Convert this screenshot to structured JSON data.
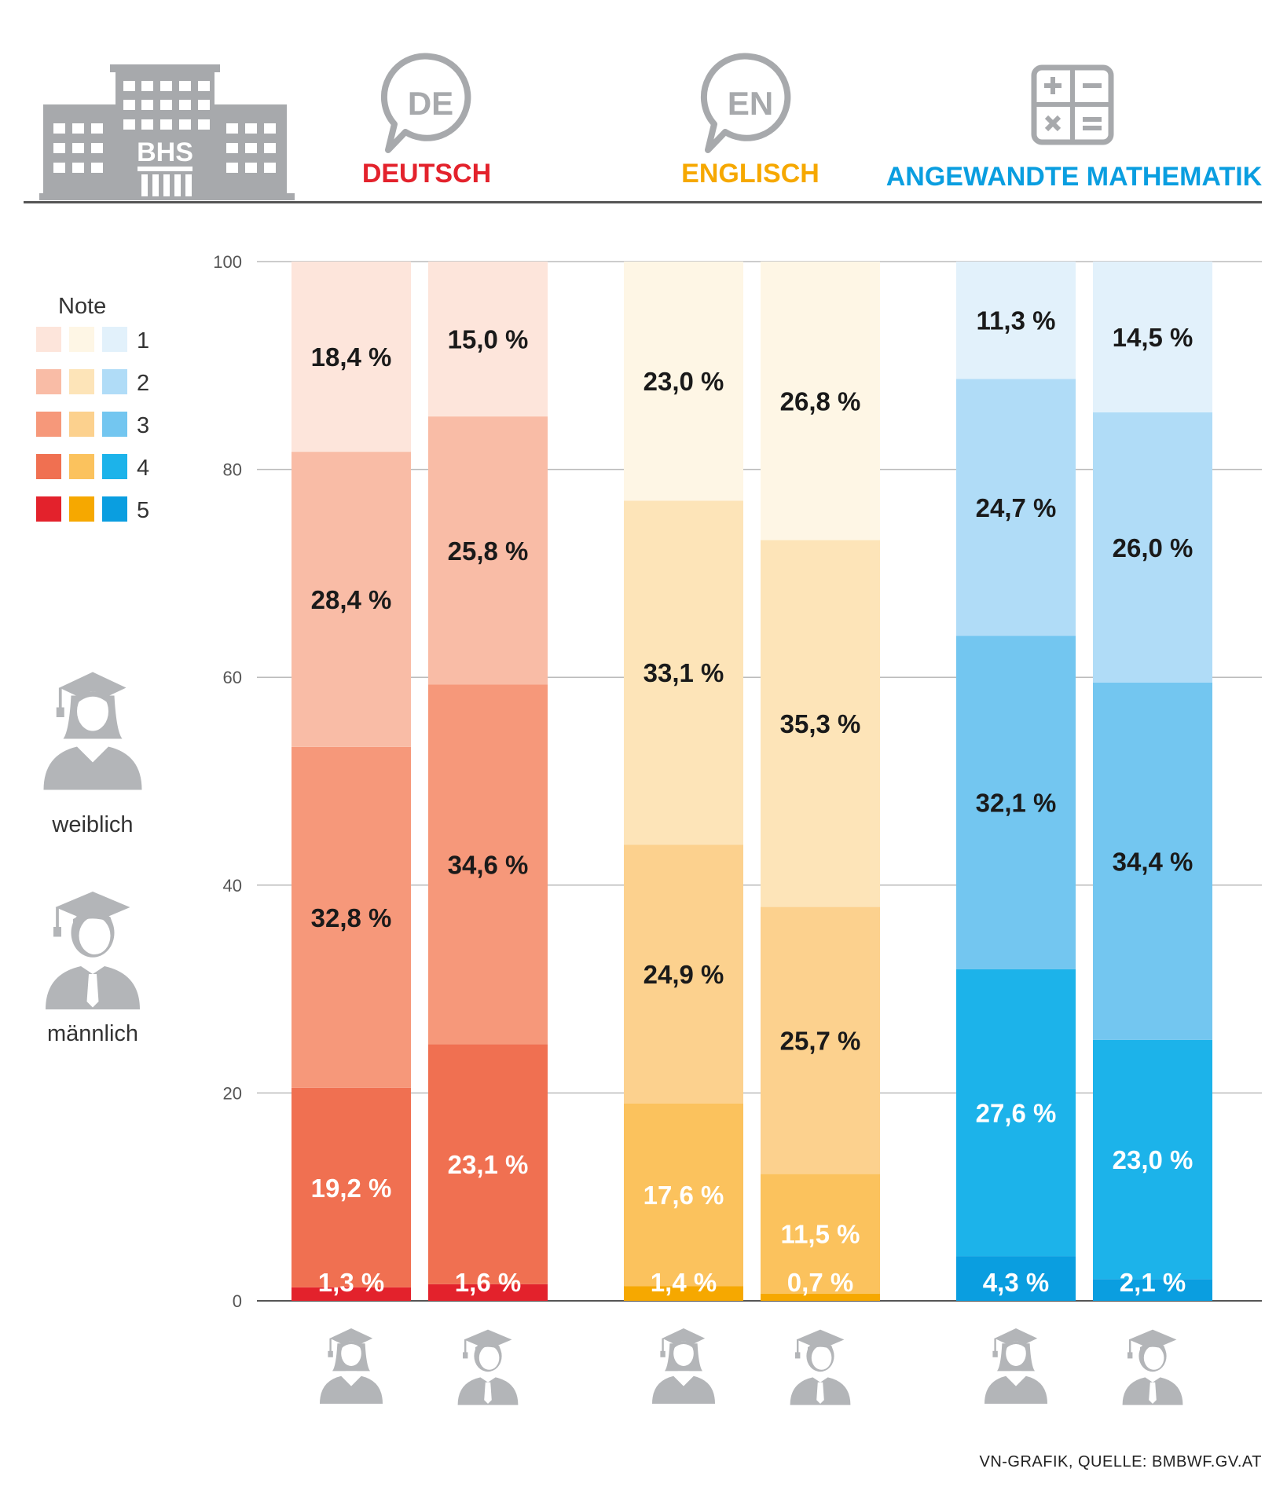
{
  "header": {
    "school_label": "BHS",
    "icon_de": "DE",
    "icon_en": "EN",
    "subjects": [
      {
        "label": "DEUTSCH",
        "color": "#e3222c"
      },
      {
        "label": "ENGLISCH",
        "color": "#f6a800"
      },
      {
        "label": "ANGEWANDTE MATHEMATIK",
        "color": "#0a9ee0"
      }
    ]
  },
  "legend": {
    "title": "Note",
    "grades": [
      "1",
      "2",
      "3",
      "4",
      "5"
    ],
    "colors": {
      "deutsch": [
        "#fde5db",
        "#f9bca6",
        "#f6987a",
        "#f07051",
        "#e3222c"
      ],
      "englisch": [
        "#fef6e5",
        "#fde4b8",
        "#fcd18e",
        "#fbc25d",
        "#f6a800"
      ],
      "mathematik": [
        "#e2f1fb",
        "#b0dcf7",
        "#73c6f0",
        "#1cb3ea",
        "#0a9ee0"
      ]
    }
  },
  "people": {
    "female_label": "weiblich",
    "male_label": "männlich"
  },
  "chart_data": {
    "type": "bar",
    "stacked": true,
    "ylim": [
      0,
      100
    ],
    "yticks": [
      "0",
      "20",
      "40",
      "60",
      "80",
      "100"
    ],
    "grid": true,
    "groups": [
      {
        "subject": "DEUTSCH",
        "bars": [
          {
            "gender": "weiblich",
            "values": [
              18.4,
              28.4,
              32.8,
              19.2,
              1.3
            ],
            "labels": [
              "18,4 %",
              "28,4 %",
              "32,8 %",
              "19,2 %",
              "1,3 %"
            ]
          },
          {
            "gender": "männlich",
            "values": [
              15.0,
              25.8,
              34.6,
              23.1,
              1.6
            ],
            "labels": [
              "15,0 %",
              "25,8 %",
              "34,6 %",
              "23,1 %",
              "1,6 %"
            ]
          }
        ]
      },
      {
        "subject": "ENGLISCH",
        "bars": [
          {
            "gender": "weiblich",
            "values": [
              23.0,
              33.1,
              24.9,
              17.6,
              1.4
            ],
            "labels": [
              "23,0 %",
              "33,1 %",
              "24,9 %",
              "17,6 %",
              "1,4 %"
            ]
          },
          {
            "gender": "männlich",
            "values": [
              26.8,
              35.3,
              25.7,
              11.5,
              0.7
            ],
            "labels": [
              "26,8 %",
              "35,3 %",
              "25,7 %",
              "11,5 %",
              "0,7 %"
            ]
          }
        ]
      },
      {
        "subject": "ANGEWANDTE MATHEMATIK",
        "bars": [
          {
            "gender": "weiblich",
            "values": [
              11.3,
              24.7,
              32.1,
              27.6,
              4.3
            ],
            "labels": [
              "11,3 %",
              "24,7 %",
              "32,1 %",
              "27,6 %",
              "4,3 %"
            ]
          },
          {
            "gender": "männlich",
            "values": [
              14.5,
              26.0,
              34.4,
              23.0,
              2.1
            ],
            "labels": [
              "14,5 %",
              "26,0 %",
              "34,4 %",
              "23,0 %",
              "2,1 %"
            ]
          }
        ]
      }
    ]
  },
  "source": "VN-GRAFIK, QUELLE: BMBWF.GV.AT"
}
